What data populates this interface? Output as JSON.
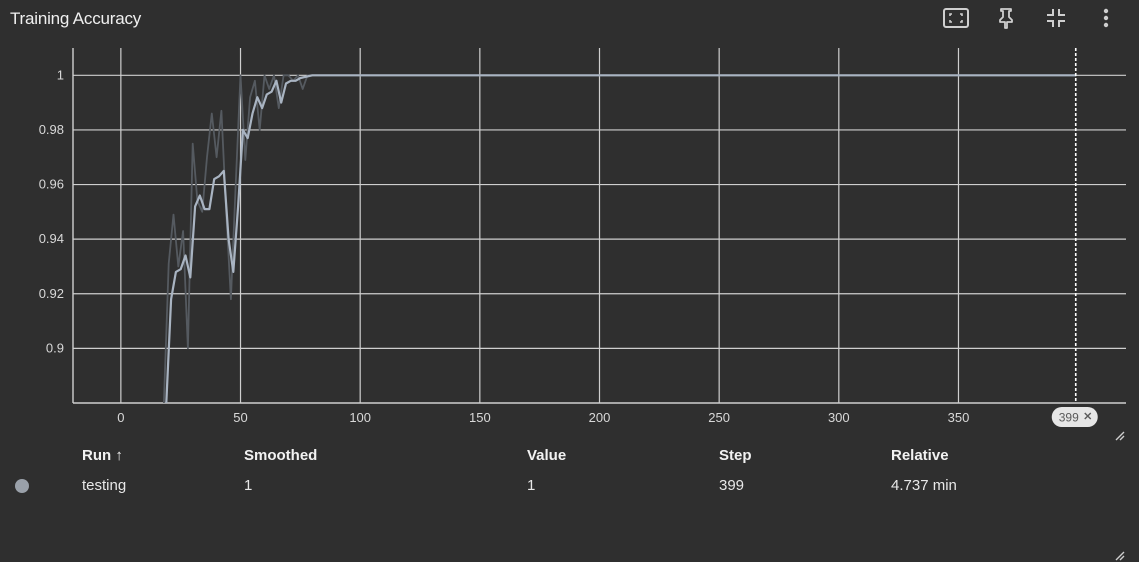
{
  "header": {
    "title": "Training Accuracy",
    "icons": [
      "fit-domain-icon",
      "pin-icon",
      "collapse-icon",
      "more-vert-icon"
    ]
  },
  "colors": {
    "background": "#2f2f2f",
    "grid": "#cfcfcf",
    "raw_line": "#555a60",
    "smoothed_line": "#a9b4c2",
    "run_dot": "#9aa1aa",
    "badge": "#e6e6e6"
  },
  "chart_data": {
    "type": "line",
    "title": "Training Accuracy",
    "xlabel": "",
    "ylabel": "",
    "xlim": [
      -20,
      420
    ],
    "ylim": [
      0.88,
      1.01
    ],
    "x_ticks": [
      0,
      50,
      100,
      150,
      200,
      250,
      300,
      350
    ],
    "y_ticks": [
      0.9,
      0.92,
      0.94,
      0.96,
      0.98,
      1
    ],
    "y_tick_labels": [
      "0.9",
      "0.92",
      "0.94",
      "0.96",
      "0.98",
      "1"
    ],
    "grid": true,
    "cursor_step": 399,
    "cursor_label": "399",
    "series": [
      {
        "role": "raw",
        "x": [
          18,
          20,
          22,
          24,
          26,
          28,
          30,
          32,
          34,
          36,
          38,
          40,
          42,
          44,
          46,
          48,
          50,
          52,
          54,
          56,
          58,
          60,
          62,
          64,
          66,
          68,
          70,
          72,
          74,
          76,
          78,
          80,
          85,
          90,
          100,
          150,
          200,
          250,
          300,
          350,
          399
        ],
        "y": [
          0.88,
          0.931,
          0.949,
          0.93,
          0.943,
          0.9,
          0.975,
          0.954,
          0.95,
          0.97,
          0.986,
          0.97,
          0.987,
          0.95,
          0.918,
          0.96,
          1.0,
          0.969,
          0.992,
          0.998,
          0.98,
          1.0,
          0.995,
          1.0,
          0.988,
          1.0,
          1.0,
          0.998,
          1.0,
          0.995,
          1.0,
          1.0,
          1.0,
          1.0,
          1.0,
          1.0,
          1.0,
          1.0,
          1.0,
          1.0,
          1.0
        ]
      },
      {
        "name": "testing",
        "role": "smoothed",
        "x": [
          19,
          21,
          23,
          25,
          27,
          29,
          31,
          33,
          35,
          37,
          39,
          41,
          43,
          45,
          47,
          49,
          51,
          53,
          55,
          57,
          59,
          61,
          63,
          65,
          67,
          69,
          71,
          73,
          75,
          80,
          90,
          100,
          150,
          200,
          250,
          300,
          350,
          399
        ],
        "y": [
          0.88,
          0.918,
          0.928,
          0.929,
          0.934,
          0.926,
          0.952,
          0.956,
          0.951,
          0.951,
          0.962,
          0.963,
          0.965,
          0.94,
          0.928,
          0.952,
          0.98,
          0.977,
          0.986,
          0.992,
          0.988,
          0.993,
          0.994,
          0.998,
          0.99,
          0.997,
          0.998,
          0.998,
          0.999,
          1.0,
          1.0,
          1.0,
          1.0,
          1.0,
          1.0,
          1.0,
          1.0,
          1.0
        ]
      }
    ]
  },
  "table": {
    "headers": {
      "run": "Run ↑",
      "smoothed": "Smoothed",
      "value": "Value",
      "step": "Step",
      "relative": "Relative"
    },
    "rows": [
      {
        "run": "testing",
        "smoothed": "1",
        "value": "1",
        "step": "399",
        "relative": "4.737 min"
      }
    ]
  }
}
